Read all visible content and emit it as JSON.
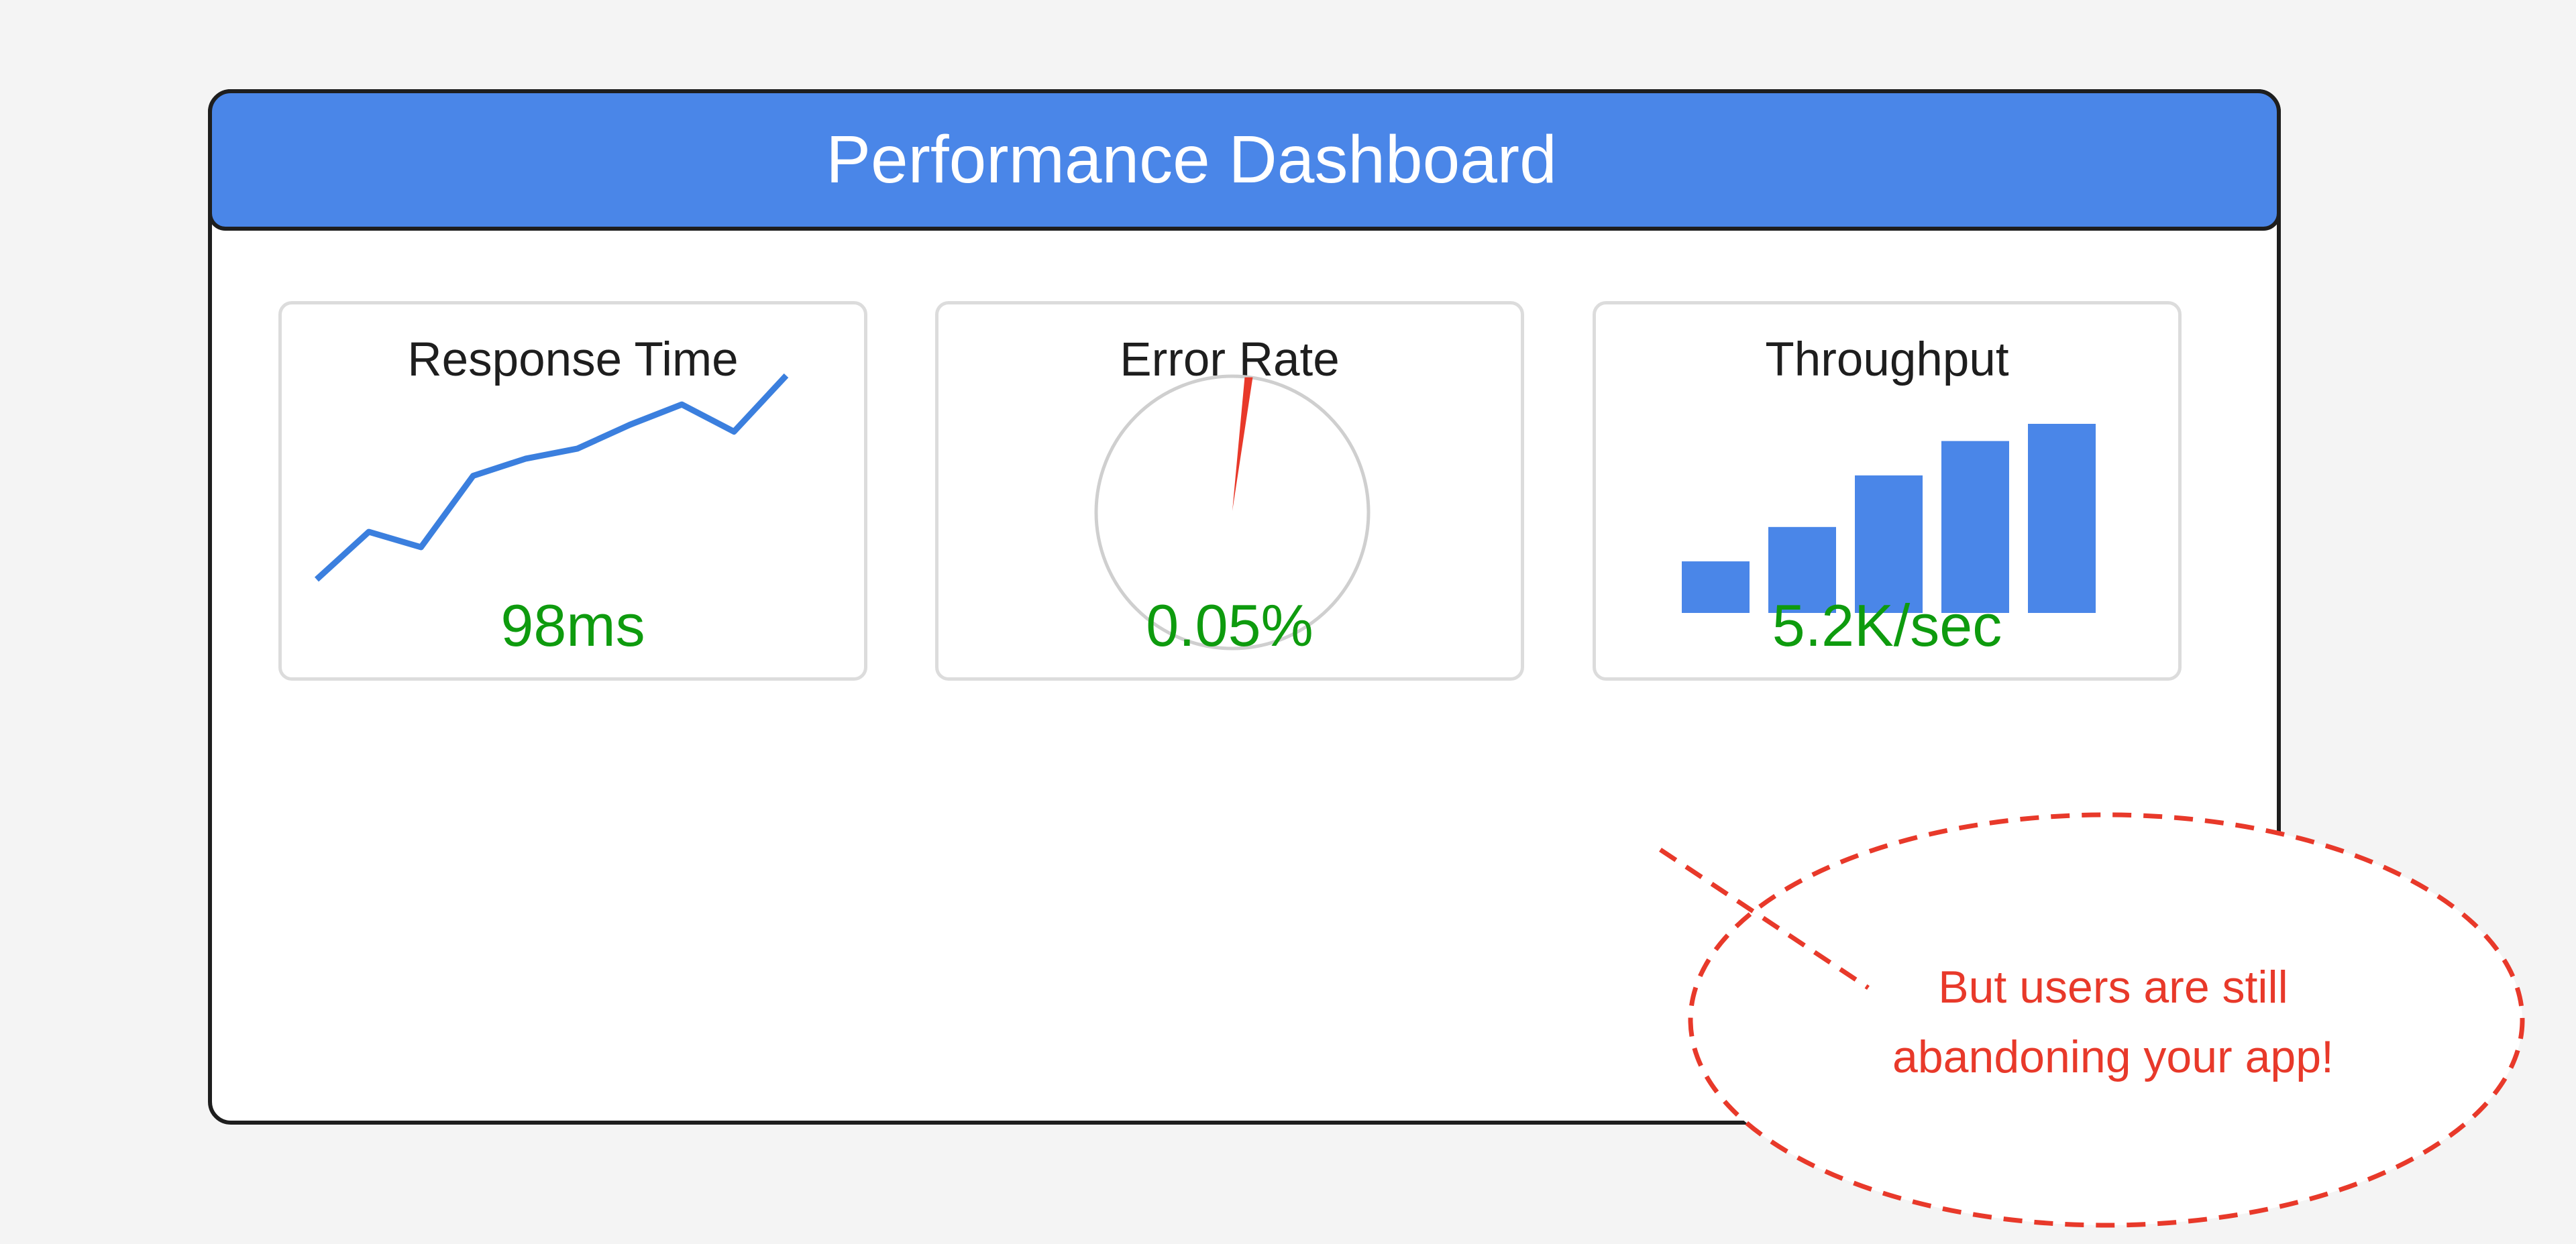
{
  "dashboard": {
    "title": "Performance Dashboard"
  },
  "cards": [
    {
      "title": "Response Time",
      "value": "98ms"
    },
    {
      "title": "Error Rate",
      "value": "0.05%"
    },
    {
      "title": "Throughput",
      "value": "5.2K/sec"
    }
  ],
  "callout": {
    "line1": "But users are still",
    "line2": "abandoning your app!"
  },
  "colors": {
    "header": "#4a86e8",
    "value_green": "#0e9b0e",
    "line_blue": "#3b7fde",
    "bar_blue": "#4a86e8",
    "gauge_red": "#e8392a",
    "callout_red": "#e8392a"
  },
  "chart_data": [
    {
      "type": "line",
      "title": "Response Time",
      "values": [
        0,
        2.8,
        1.9,
        6.1,
        7.1,
        7.7,
        9.1,
        10.3,
        8.7,
        12
      ]
    },
    {
      "type": "gauge",
      "title": "Error Rate",
      "value_percent": 0.05
    },
    {
      "type": "bar",
      "title": "Throughput",
      "values": [
        3,
        5,
        8,
        10,
        11
      ]
    }
  ]
}
